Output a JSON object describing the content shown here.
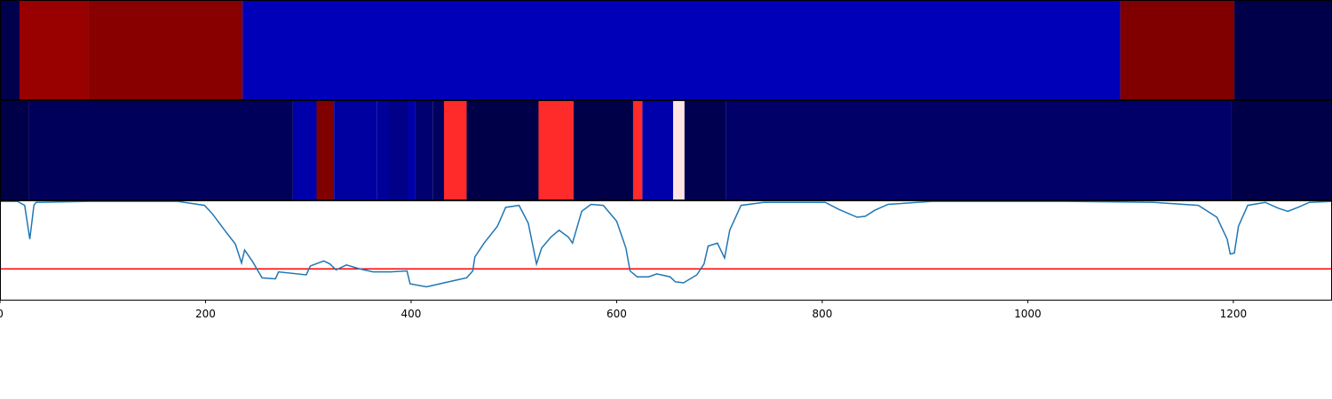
{
  "chart_data": [
    {
      "type": "segments",
      "xlim": [
        0,
        1296
      ],
      "segments": [
        {
          "start": 0,
          "end": 19,
          "color": "#00004c"
        },
        {
          "start": 19,
          "end": 86,
          "color": "#990000"
        },
        {
          "start": 86,
          "end": 236,
          "color": "#880000"
        },
        {
          "start": 236,
          "end": 1090,
          "color": "#0000b8"
        },
        {
          "start": 1090,
          "end": 1201,
          "color": "#800000"
        },
        {
          "start": 1201,
          "end": 1296,
          "color": "#00004a"
        }
      ]
    },
    {
      "type": "segments",
      "xlim": [
        0,
        1296
      ],
      "segments": [
        {
          "start": 0,
          "end": 28,
          "color": "#000048"
        },
        {
          "start": 28,
          "end": 285,
          "color": "#00005a"
        },
        {
          "start": 285,
          "end": 308,
          "color": "#0000aa"
        },
        {
          "start": 308,
          "end": 325,
          "color": "#800000"
        },
        {
          "start": 325,
          "end": 367,
          "color": "#0000a0"
        },
        {
          "start": 367,
          "end": 378,
          "color": "#00009a"
        },
        {
          "start": 378,
          "end": 397,
          "color": "#000088"
        },
        {
          "start": 397,
          "end": 404,
          "color": "#0000aa"
        },
        {
          "start": 404,
          "end": 421,
          "color": "#000070"
        },
        {
          "start": 421,
          "end": 432,
          "color": "#000060"
        },
        {
          "start": 432,
          "end": 454,
          "color": "#ff2a2a"
        },
        {
          "start": 454,
          "end": 524,
          "color": "#000048"
        },
        {
          "start": 524,
          "end": 558,
          "color": "#ff2a2a"
        },
        {
          "start": 558,
          "end": 616,
          "color": "#000048"
        },
        {
          "start": 616,
          "end": 625,
          "color": "#ff2a2a"
        },
        {
          "start": 625,
          "end": 655,
          "color": "#0000aa"
        },
        {
          "start": 655,
          "end": 666,
          "color": "#ffe4e4"
        },
        {
          "start": 666,
          "end": 706,
          "color": "#000050"
        },
        {
          "start": 706,
          "end": 1198,
          "color": "#000068"
        },
        {
          "start": 1198,
          "end": 1296,
          "color": "#000048"
        }
      ]
    },
    {
      "type": "line",
      "xlim": [
        0,
        1296
      ],
      "ylim": [
        0,
        1
      ],
      "xticks": [
        0,
        200,
        400,
        600,
        800,
        1000,
        1200
      ],
      "color": "#1f77b4",
      "hline": 0.31,
      "hline_color": "#ff0000",
      "x": [
        0,
        17,
        24,
        29,
        33,
        35,
        86,
        173,
        199,
        207,
        220,
        229,
        235,
        238,
        246,
        251,
        255,
        268,
        271,
        298,
        302,
        315,
        321,
        327,
        337,
        350,
        363,
        380,
        396,
        399,
        415,
        432,
        454,
        460,
        462,
        471,
        484,
        492,
        505,
        514,
        522,
        527,
        536,
        544,
        553,
        557,
        566,
        575,
        587,
        600,
        609,
        613,
        620,
        631,
        639,
        652,
        657,
        665,
        678,
        685,
        689,
        698,
        705,
        710,
        721,
        743,
        803,
        816,
        834,
        842,
        851,
        864,
        907,
        1037,
        1123,
        1166,
        1184,
        1194,
        1197,
        1201,
        1205,
        1214,
        1231,
        1244,
        1253,
        1263,
        1274,
        1296
      ],
      "values": [
        0.99,
        0.99,
        0.95,
        0.61,
        0.95,
        0.98,
        0.99,
        0.99,
        0.95,
        0.86,
        0.68,
        0.56,
        0.37,
        0.5,
        0.38,
        0.29,
        0.22,
        0.21,
        0.28,
        0.25,
        0.34,
        0.39,
        0.36,
        0.3,
        0.35,
        0.31,
        0.28,
        0.28,
        0.29,
        0.16,
        0.13,
        0.17,
        0.22,
        0.29,
        0.43,
        0.57,
        0.74,
        0.93,
        0.95,
        0.77,
        0.36,
        0.52,
        0.63,
        0.7,
        0.63,
        0.57,
        0.89,
        0.96,
        0.95,
        0.79,
        0.52,
        0.29,
        0.23,
        0.23,
        0.26,
        0.23,
        0.18,
        0.17,
        0.25,
        0.36,
        0.54,
        0.57,
        0.42,
        0.7,
        0.95,
        0.98,
        0.98,
        0.91,
        0.83,
        0.84,
        0.9,
        0.96,
        0.99,
        0.99,
        0.98,
        0.95,
        0.83,
        0.61,
        0.46,
        0.47,
        0.74,
        0.95,
        0.98,
        0.92,
        0.89,
        0.93,
        0.98,
        0.99
      ]
    }
  ]
}
